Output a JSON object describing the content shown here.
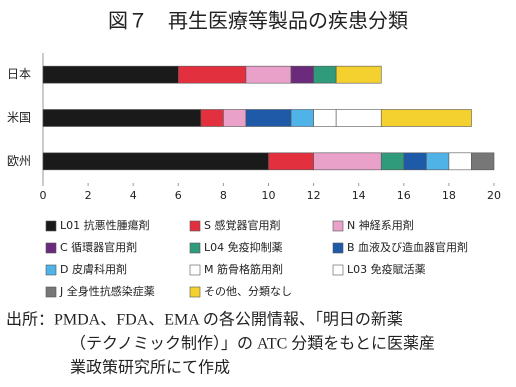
{
  "chart_data": {
    "type": "stacked-bar-horizontal",
    "title": "図７　再生医療等製品の疾患分類",
    "categories": [
      "日本",
      "米国",
      "欧州"
    ],
    "xlim": [
      0,
      20
    ],
    "xticks": [
      0,
      2,
      4,
      6,
      8,
      10,
      12,
      14,
      16,
      18,
      20
    ],
    "series": [
      {
        "name": "L01 抗悪性腫瘍剤",
        "color": "#1a1a1a",
        "values": [
          6,
          7,
          10
        ]
      },
      {
        "name": "S 感覚器官用剤",
        "color": "#e3303f",
        "values": [
          3,
          1,
          2
        ]
      },
      {
        "name": "N 神経系用剤",
        "color": "#e9a1c9",
        "values": [
          2,
          1,
          3
        ]
      },
      {
        "name": "C 循環器官用剤",
        "color": "#6b2a7b",
        "values": [
          1,
          0,
          0
        ]
      },
      {
        "name": "L04 免疫抑制薬",
        "color": "#2f9b7b",
        "values": [
          1,
          0,
          1
        ]
      },
      {
        "name": "B 血液及び造血器官用剤",
        "color": "#1f5aa8",
        "values": [
          0,
          2,
          1
        ]
      },
      {
        "name": "D 皮膚科用剤",
        "color": "#4fb3e8",
        "values": [
          0,
          1,
          1
        ]
      },
      {
        "name": "M 筋骨格筋用剤",
        "color": "#ffffff",
        "values": [
          0,
          1,
          1
        ]
      },
      {
        "name": "L03 免疫賦活薬",
        "color": "#ffffff",
        "values": [
          0,
          2,
          0
        ]
      },
      {
        "name": "J 全身性抗感染症薬",
        "color": "#777777",
        "values": [
          0,
          0,
          1
        ]
      },
      {
        "name": "その他、分類なし",
        "color": "#f5d130",
        "values": [
          2,
          4,
          0
        ]
      }
    ]
  },
  "source": [
    "出所：PMDA、FDA、EMA の各公開情報、「明日の新薬",
    "（テクノミック制作）」の ATC 分類をもとに医薬産",
    "業政策研究所にて作成"
  ]
}
